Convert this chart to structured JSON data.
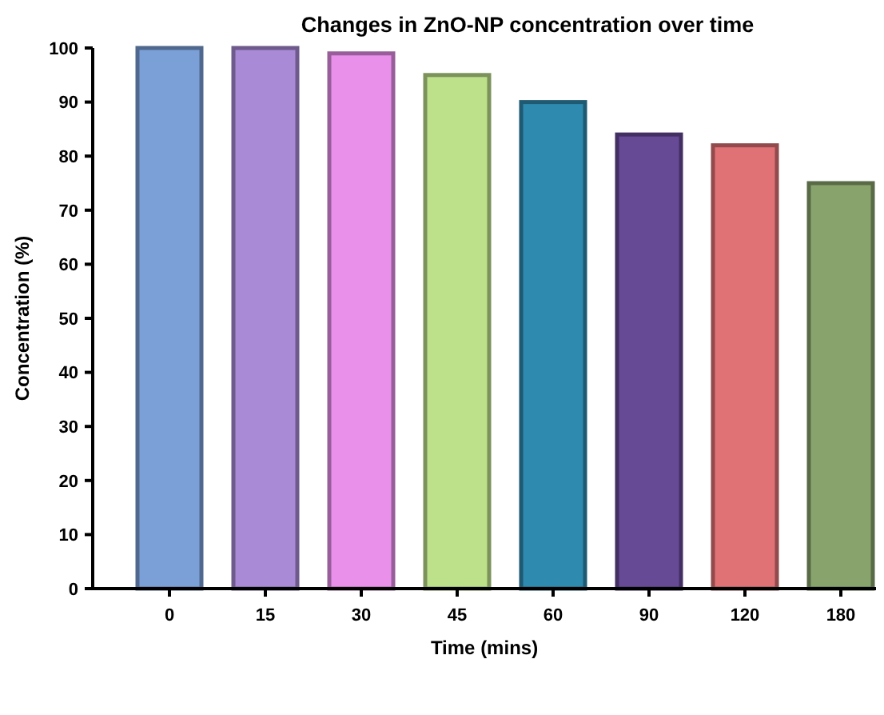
{
  "chart_data": {
    "type": "bar",
    "title": "Changes in ZnO-NP concentration over time",
    "xlabel": "Time (mins)",
    "ylabel": "Concentration (%)",
    "categories": [
      "0",
      "15",
      "30",
      "45",
      "60",
      "90",
      "120",
      "180"
    ],
    "values": [
      100,
      100,
      99,
      95,
      90,
      84,
      82,
      75
    ],
    "colors": [
      "#7ba0d8",
      "#a98ad6",
      "#e890ea",
      "#bde08a",
      "#2e8aae",
      "#674a96",
      "#e07276",
      "#88a46c"
    ],
    "ylim": [
      0,
      100
    ],
    "yticks": [
      0,
      10,
      20,
      30,
      40,
      50,
      60,
      70,
      80,
      90,
      100
    ],
    "grid": false
  }
}
